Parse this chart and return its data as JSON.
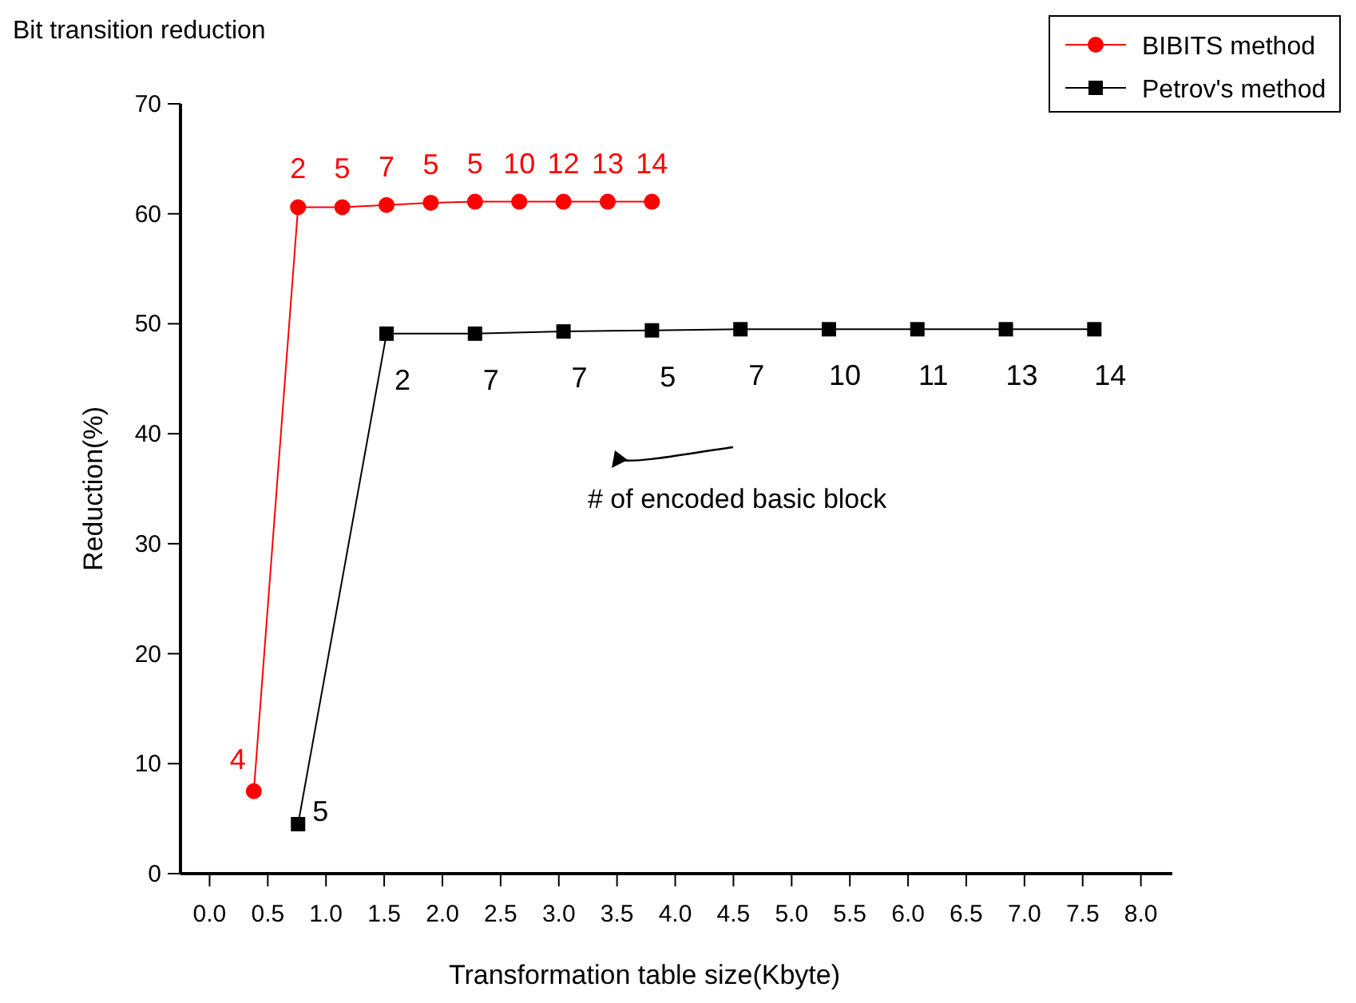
{
  "chart_data": {
    "type": "line",
    "title": "Bit transition reduction",
    "xlabel": "Transformation table size(Kbyte)",
    "ylabel": "Reduction(%)",
    "xlim": [
      -0.25,
      8.27
    ],
    "ylim": [
      0,
      70
    ],
    "xticks": [
      {
        "value": 0,
        "label": "0.0"
      },
      {
        "value": 0.5,
        "label": "0.5"
      },
      {
        "value": 1,
        "label": "1.0"
      },
      {
        "value": 1.5,
        "label": "1.5"
      },
      {
        "value": 2,
        "label": "2.0"
      },
      {
        "value": 2.5,
        "label": "2.5"
      },
      {
        "value": 3,
        "label": "3.0"
      },
      {
        "value": 3.5,
        "label": "3.5"
      },
      {
        "value": 4,
        "label": "4.0"
      },
      {
        "value": 4.5,
        "label": "4.5"
      },
      {
        "value": 5,
        "label": "5.0"
      },
      {
        "value": 5.5,
        "label": "5.5"
      },
      {
        "value": 6,
        "label": "6.0"
      },
      {
        "value": 6.5,
        "label": "6.5"
      },
      {
        "value": 7,
        "label": "7.0"
      },
      {
        "value": 7.5,
        "label": "7.5"
      },
      {
        "value": 8,
        "label": "8.0"
      }
    ],
    "yticks": [
      0,
      10,
      20,
      30,
      40,
      50,
      60,
      70
    ],
    "grid": false,
    "legend": "top right",
    "series": [
      {
        "name": "BIBITS method",
        "color": "#ff0000",
        "marker": "circle",
        "x": [
          0.38,
          0.76,
          1.14,
          1.52,
          1.9,
          2.28,
          2.66,
          3.04,
          3.42,
          3.8
        ],
        "values": [
          7.5,
          60.6,
          60.6,
          60.8,
          61.0,
          61.1,
          61.1,
          61.1,
          61.1,
          61.1
        ]
      },
      {
        "name": "Petrov's method",
        "color": "#000000",
        "marker": "square",
        "x": [
          0.76,
          1.52,
          2.28,
          3.04,
          3.8,
          4.56,
          5.32,
          6.08,
          6.84,
          7.6
        ],
        "values": [
          4.5,
          49.1,
          49.1,
          49.3,
          49.4,
          49.5,
          49.5,
          49.5,
          49.5,
          49.5
        ]
      }
    ],
    "annotations": [
      {
        "text": "4",
        "x": 0.38,
        "y": 7.5
      },
      {
        "text": "2",
        "x": 0.76,
        "y": 60.6
      },
      {
        "text": "5",
        "x": 1.14,
        "y": 60.6
      },
      {
        "text": "7",
        "x": 1.52,
        "y": 60.8
      },
      {
        "text": "5",
        "x": 1.9,
        "y": 61.0
      },
      {
        "text": "5",
        "x": 2.28,
        "y": 61.1
      },
      {
        "text": "10",
        "x": 2.66,
        "y": 61.1
      },
      {
        "text": "12",
        "x": 3.04,
        "y": 61.1
      },
      {
        "text": "13",
        "x": 3.42,
        "y": 61.1
      },
      {
        "text": "14",
        "x": 3.8,
        "y": 61.1
      },
      {
        "text": "5",
        "x": 0.76,
        "y": 4.5
      },
      {
        "text": "2",
        "x": 1.52,
        "y": 49.1
      },
      {
        "text": "7",
        "x": 2.28,
        "y": 49.1
      },
      {
        "text": "7",
        "x": 3.04,
        "y": 49.3
      },
      {
        "text": "5",
        "x": 3.8,
        "y": 49.4
      },
      {
        "text": "7",
        "x": 4.56,
        "y": 49.5
      },
      {
        "text": "10",
        "x": 5.32,
        "y": 49.5
      },
      {
        "text": "11",
        "x": 6.08,
        "y": 49.5
      },
      {
        "text": "13",
        "x": 6.84,
        "y": 49.5
      },
      {
        "text": "14",
        "x": 7.6,
        "y": 49.5
      },
      "# of encoded basic block"
    ]
  }
}
